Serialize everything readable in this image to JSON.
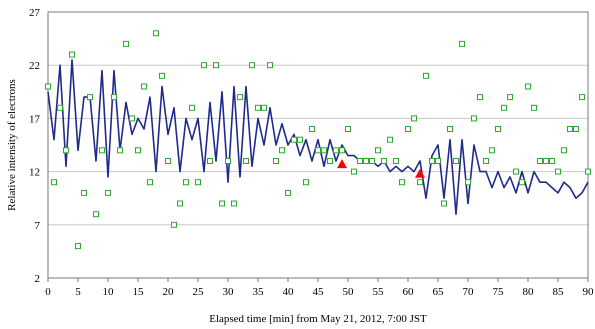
{
  "chart_data": {
    "type": "line",
    "xlabel": "Elapsed time [min] from May 21, 2012, 7:00 JST",
    "ylabel": "Relative intensity of electrons",
    "xlim": [
      0,
      90
    ],
    "ylim": [
      2,
      27
    ],
    "xticks": [
      "0",
      "5",
      "10",
      "15",
      "20",
      "25",
      "30",
      "35",
      "40",
      "45",
      "50",
      "55",
      "60",
      "65",
      "70",
      "75",
      "80",
      "85",
      "90"
    ],
    "yticks": [
      "2",
      "7",
      "12",
      "17",
      "22",
      "27"
    ],
    "grid": "horizontal",
    "colors": {
      "line": "#1f2a8a",
      "points": "#2ea82e",
      "markers": "#ff0000",
      "grid": "#c8c8c8"
    },
    "series": [
      {
        "type": "line",
        "x": [
          0,
          1,
          2,
          3,
          4,
          5,
          6,
          7,
          8,
          9,
          10,
          11,
          12,
          13,
          14,
          15,
          16,
          17,
          18,
          19,
          20,
          21,
          22,
          23,
          24,
          25,
          26,
          27,
          28,
          29,
          30,
          31,
          32,
          33,
          34,
          35,
          36,
          37,
          38,
          39,
          40,
          41,
          42,
          43,
          44,
          45,
          46,
          47,
          48,
          49,
          50,
          51,
          52,
          53,
          54,
          55,
          56,
          57,
          58,
          59,
          60,
          61,
          62,
          63,
          64,
          65,
          66,
          67,
          68,
          69,
          70,
          71,
          72,
          73,
          74,
          75,
          76,
          77,
          78,
          79,
          80,
          81,
          82,
          83,
          84,
          85,
          86,
          87,
          88,
          89,
          90
        ],
        "y": [
          19.5,
          15,
          22,
          12.5,
          22.5,
          14,
          19,
          19,
          13,
          21.5,
          11.5,
          21.5,
          14,
          18.5,
          15.5,
          17,
          16,
          19,
          12,
          20,
          15.5,
          18,
          12,
          17,
          15,
          17,
          12,
          18.5,
          13,
          19.5,
          11,
          20,
          11.5,
          20,
          12.5,
          17,
          14.5,
          18,
          14.5,
          16.5,
          14.5,
          15.5,
          13.5,
          15,
          13,
          15,
          12.5,
          15,
          13,
          14.5,
          13.5,
          13.5,
          13,
          13,
          13,
          12.5,
          13,
          12,
          12.5,
          12,
          12.5,
          12,
          13,
          9.5,
          13.5,
          14.5,
          9.5,
          15,
          8,
          15,
          9,
          14.5,
          12,
          12,
          10.5,
          12,
          10.5,
          11.5,
          10,
          12,
          10,
          12,
          11,
          11,
          10.5,
          10,
          11,
          10.5,
          9.5,
          10,
          11
        ]
      },
      {
        "type": "scatter",
        "marker": "open-square",
        "x": [
          0,
          1,
          2,
          3,
          4,
          5,
          6,
          7,
          8,
          9,
          10,
          11,
          12,
          13,
          14,
          15,
          16,
          17,
          18,
          19,
          20,
          21,
          22,
          23,
          24,
          25,
          26,
          27,
          28,
          29,
          30,
          31,
          32,
          33,
          34,
          35,
          36,
          37,
          38,
          39,
          40,
          41,
          42,
          43,
          44,
          45,
          46,
          47,
          48,
          49,
          50,
          51,
          52,
          53,
          54,
          55,
          56,
          57,
          58,
          59,
          60,
          61,
          62,
          63,
          64,
          65,
          66,
          67,
          68,
          69,
          70,
          71,
          72,
          73,
          74,
          75,
          76,
          77,
          78,
          79,
          80,
          81,
          82,
          83,
          84,
          85,
          86,
          87,
          88,
          89,
          90
        ],
        "y": [
          20,
          11,
          18,
          14,
          23,
          5,
          10,
          19,
          8,
          14,
          10,
          19,
          14,
          24,
          17,
          14,
          20,
          11,
          25,
          21,
          13,
          7,
          9,
          11,
          18,
          11,
          22,
          13,
          22,
          9,
          13,
          9,
          19,
          13,
          22,
          18,
          18,
          22,
          13,
          14,
          10,
          15,
          15,
          11,
          16,
          14,
          14,
          13,
          14,
          14,
          16,
          12,
          13,
          13,
          13,
          14,
          13,
          15,
          13,
          11,
          16,
          17,
          11,
          21,
          13,
          13,
          9,
          16,
          13,
          24,
          11,
          17,
          19,
          13,
          14,
          16,
          18,
          19,
          12,
          11,
          20,
          18,
          13,
          13,
          13,
          12,
          14,
          16,
          16,
          19,
          12
        ]
      },
      {
        "type": "scatter",
        "marker": "filled-triangle",
        "x": [
          49,
          62
        ],
        "y": [
          12.7,
          11.8
        ]
      }
    ]
  }
}
